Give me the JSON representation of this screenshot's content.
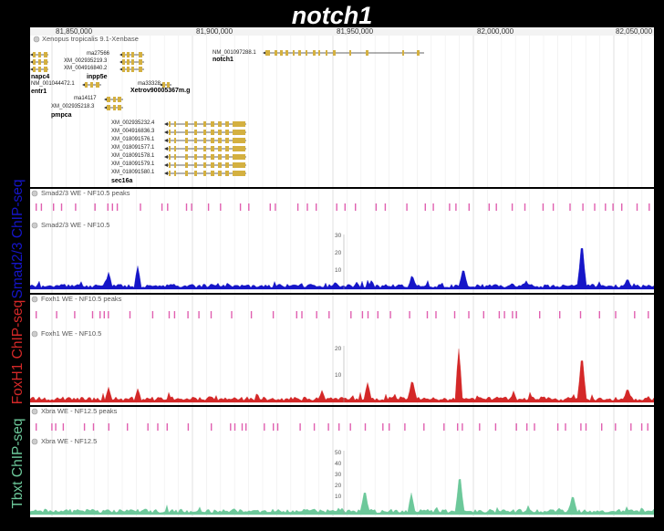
{
  "title": "notch1",
  "colors": {
    "smad": "#1515c8",
    "foxh1": "#d42828",
    "tbxt": "#6cc89a",
    "peaks": "#e060b0",
    "gene": "#d4b040",
    "gene_dark": "#333333"
  },
  "ruler": {
    "ticks": [
      "81,850,000",
      "81,900,000",
      "81,950,000",
      "82,000,000",
      "82,050,000"
    ]
  },
  "gene_track": {
    "name": "Xenopus tropicalis 9.1-Xenbase",
    "labels": [
      "NM_001097288.1",
      "notch1",
      "ma27566",
      "XM_002935219.3",
      "XM_004916840.2",
      "inpp5e",
      "napc4",
      "NM_001044472.1",
      "entr1",
      "ma33328",
      "Xetrov90005367m.g",
      "ma14117",
      "XM_002935218.3",
      "pmpca",
      "XM_002935232.4",
      "XM_004916836.3",
      "XM_018091576.1",
      "XM_018091577.1",
      "XM_018091578.1",
      "XM_018091579.1",
      "XM_018091580.1",
      "sec16a"
    ]
  },
  "tracks": {
    "smad": {
      "side_label": "Smad2/3 ChIP-seq",
      "peaks_name": "Smad2/3 WE - NF10.5 peaks",
      "signal_name": "Smad2/3 WE - NF10.5",
      "y_ticks": [
        "30",
        "20",
        "10"
      ]
    },
    "foxh1": {
      "side_label": "FoxH1 ChIP-seq",
      "peaks_name": "Foxh1 WE - NF10.5 peaks",
      "signal_name": "Foxh1 WE - NF10.5",
      "y_ticks": [
        "20",
        "10"
      ]
    },
    "tbxt": {
      "side_label": "Tbxt ChIP-seq",
      "peaks_name": "Xbra WE - NF12.5 peaks",
      "signal_name": "Xbra WE - NF12.5",
      "y_ticks": [
        "50",
        "40",
        "30",
        "20",
        "10"
      ]
    }
  }
}
